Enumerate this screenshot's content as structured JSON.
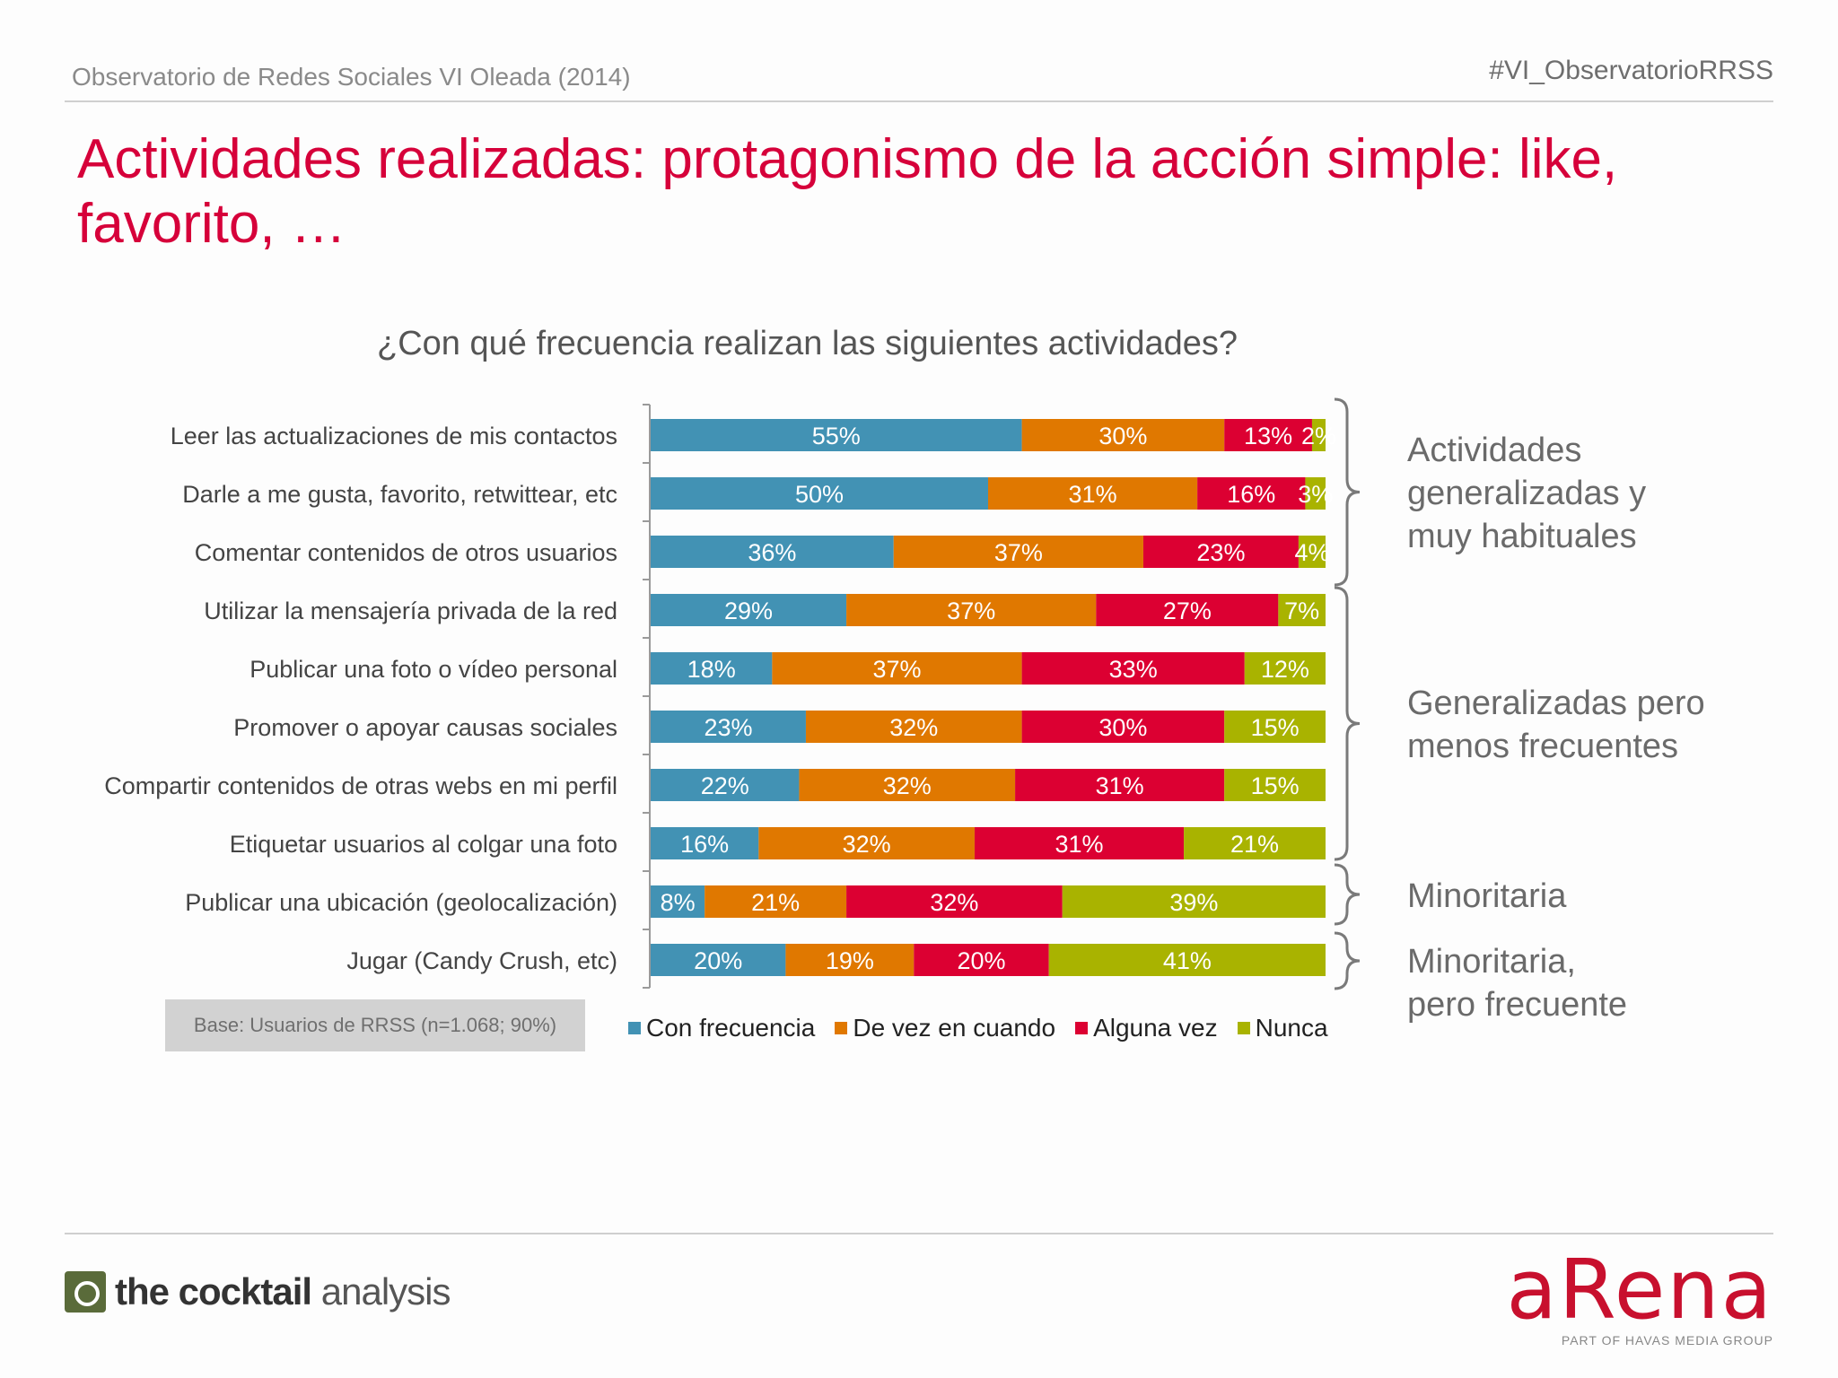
{
  "header": {
    "left": "Observatorio de Redes Sociales VI Oleada (2014)",
    "right": "#VI_ObservatorioRRSS"
  },
  "title": "Actividades realizadas: protagonismo de la acción simple: like, favorito, …",
  "question": "¿Con qué frecuencia realizan las siguientes actividades?",
  "base_note": "Base: Usuarios de RRSS (n=1.068; 90%)",
  "colors": {
    "Con frecuencia": "#4292b4",
    "De vez en cuando": "#e07800",
    "Alguna vez": "#dc0032",
    "Nunca": "#a9b300"
  },
  "chart_data": {
    "type": "bar",
    "orientation": "horizontal-stacked-100",
    "categories": [
      "Leer las actualizaciones de mis contactos",
      "Darle a me gusta, favorito, retwittear, etc",
      "Comentar contenidos de otros usuarios",
      "Utilizar la mensajería privada de la red",
      "Publicar una foto o vídeo personal",
      "Promover o apoyar causas sociales",
      "Compartir contenidos de otras webs en mi perfil",
      "Etiquetar usuarios al colgar una foto",
      "Publicar una ubicación (geolocalización)",
      "Jugar (Candy Crush, etc)"
    ],
    "series": [
      {
        "name": "Con frecuencia",
        "values": [
          55,
          50,
          36,
          29,
          18,
          23,
          22,
          16,
          8,
          20
        ]
      },
      {
        "name": "De vez en cuando",
        "values": [
          30,
          31,
          37,
          37,
          37,
          32,
          32,
          32,
          21,
          19
        ]
      },
      {
        "name": "Alguna vez",
        "values": [
          13,
          16,
          23,
          27,
          33,
          30,
          31,
          31,
          32,
          20
        ]
      },
      {
        "name": "Nunca",
        "values": [
          2,
          3,
          4,
          7,
          12,
          15,
          15,
          21,
          39,
          41
        ]
      }
    ],
    "unit": "%",
    "legend": "bottom"
  },
  "groups": [
    {
      "label_lines": [
        "Actividades",
        "generalizadas y",
        "muy habituales"
      ]
    },
    {
      "label_lines": [
        "Generalizadas pero",
        "menos frecuentes"
      ]
    },
    {
      "label_lines": [
        "Minoritaria"
      ]
    },
    {
      "label_lines": [
        "Minoritaria,",
        "pero frecuente"
      ]
    }
  ],
  "logos": {
    "left_text_bold": "the cocktail",
    "left_text_light": "analysis",
    "right_word": "aRena",
    "right_sub": "PART OF HAVAS MEDIA GROUP"
  }
}
